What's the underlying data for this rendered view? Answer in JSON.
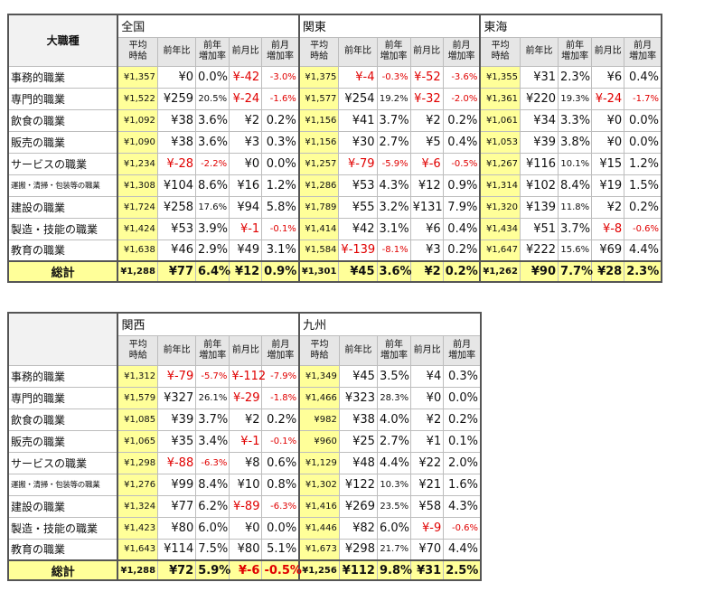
{
  "category_header": "大職種",
  "col_labels": {
    "avg": "平均\n時給",
    "yoy": "前年比",
    "yoy_rate": "前年\n増加率",
    "mom": "前月比",
    "mom_rate": "前月\n増加率"
  },
  "row_labels": [
    "事務的職業",
    "専門的職業",
    "飲食の職業",
    "販売の職業",
    "サービスの職業",
    "運搬・清掃・包装等の職業",
    "建設の職業",
    "製造・技能の職業",
    "教育の職業"
  ],
  "total_label": "総計",
  "table1": {
    "regions": [
      "全国",
      "関東",
      "東海"
    ],
    "rows": [
      [
        [
          "¥1,357",
          "¥0",
          "0.0%",
          "¥-42",
          "-3.0%"
        ],
        [
          "¥1,375",
          "¥-4",
          "-0.3%",
          "¥-52",
          "-3.6%"
        ],
        [
          "¥1,355",
          "¥31",
          "2.3%",
          "¥6",
          "0.4%"
        ]
      ],
      [
        [
          "¥1,522",
          "¥259",
          "20.5%",
          "¥-24",
          "-1.6%"
        ],
        [
          "¥1,577",
          "¥254",
          "19.2%",
          "¥-32",
          "-2.0%"
        ],
        [
          "¥1,361",
          "¥220",
          "19.3%",
          "¥-24",
          "-1.7%"
        ]
      ],
      [
        [
          "¥1,092",
          "¥38",
          "3.6%",
          "¥2",
          "0.2%"
        ],
        [
          "¥1,156",
          "¥41",
          "3.7%",
          "¥2",
          "0.2%"
        ],
        [
          "¥1,061",
          "¥34",
          "3.3%",
          "¥0",
          "0.0%"
        ]
      ],
      [
        [
          "¥1,090",
          "¥38",
          "3.6%",
          "¥3",
          "0.3%"
        ],
        [
          "¥1,156",
          "¥30",
          "2.7%",
          "¥5",
          "0.4%"
        ],
        [
          "¥1,053",
          "¥39",
          "3.8%",
          "¥0",
          "0.0%"
        ]
      ],
      [
        [
          "¥1,234",
          "¥-28",
          "-2.2%",
          "¥0",
          "0.0%"
        ],
        [
          "¥1,257",
          "¥-79",
          "-5.9%",
          "¥-6",
          "-0.5%"
        ],
        [
          "¥1,267",
          "¥116",
          "10.1%",
          "¥15",
          "1.2%"
        ]
      ],
      [
        [
          "¥1,308",
          "¥104",
          "8.6%",
          "¥16",
          "1.2%"
        ],
        [
          "¥1,286",
          "¥53",
          "4.3%",
          "¥12",
          "0.9%"
        ],
        [
          "¥1,314",
          "¥102",
          "8.4%",
          "¥19",
          "1.5%"
        ]
      ],
      [
        [
          "¥1,724",
          "¥258",
          "17.6%",
          "¥94",
          "5.8%"
        ],
        [
          "¥1,789",
          "¥55",
          "3.2%",
          "¥131",
          "7.9%"
        ],
        [
          "¥1,320",
          "¥139",
          "11.8%",
          "¥2",
          "0.2%"
        ]
      ],
      [
        [
          "¥1,424",
          "¥53",
          "3.9%",
          "¥-1",
          "-0.1%"
        ],
        [
          "¥1,414",
          "¥42",
          "3.1%",
          "¥6",
          "0.4%"
        ],
        [
          "¥1,434",
          "¥51",
          "3.7%",
          "¥-8",
          "-0.6%"
        ]
      ],
      [
        [
          "¥1,638",
          "¥46",
          "2.9%",
          "¥49",
          "3.1%"
        ],
        [
          "¥1,584",
          "¥-139",
          "-8.1%",
          "¥3",
          "0.2%"
        ],
        [
          "¥1,647",
          "¥222",
          "15.6%",
          "¥69",
          "4.4%"
        ]
      ]
    ],
    "total": [
      [
        "¥1,288",
        "¥77",
        "6.4%",
        "¥12",
        "0.9%"
      ],
      [
        "¥1,301",
        "¥45",
        "3.6%",
        "¥2",
        "0.2%"
      ],
      [
        "¥1,262",
        "¥90",
        "7.7%",
        "¥28",
        "2.3%"
      ]
    ]
  },
  "table2": {
    "regions": [
      "関西",
      "九州"
    ],
    "rows": [
      [
        [
          "¥1,312",
          "¥-79",
          "-5.7%",
          "¥-112",
          "-7.9%"
        ],
        [
          "¥1,349",
          "¥45",
          "3.5%",
          "¥4",
          "0.3%"
        ]
      ],
      [
        [
          "¥1,579",
          "¥327",
          "26.1%",
          "¥-29",
          "-1.8%"
        ],
        [
          "¥1,466",
          "¥323",
          "28.3%",
          "¥0",
          "0.0%"
        ]
      ],
      [
        [
          "¥1,085",
          "¥39",
          "3.7%",
          "¥2",
          "0.2%"
        ],
        [
          "¥982",
          "¥38",
          "4.0%",
          "¥2",
          "0.2%"
        ]
      ],
      [
        [
          "¥1,065",
          "¥35",
          "3.4%",
          "¥-1",
          "-0.1%"
        ],
        [
          "¥960",
          "¥25",
          "2.7%",
          "¥1",
          "0.1%"
        ]
      ],
      [
        [
          "¥1,298",
          "¥-88",
          "-6.3%",
          "¥8",
          "0.6%"
        ],
        [
          "¥1,129",
          "¥48",
          "4.4%",
          "¥22",
          "2.0%"
        ]
      ],
      [
        [
          "¥1,276",
          "¥99",
          "8.4%",
          "¥10",
          "0.8%"
        ],
        [
          "¥1,302",
          "¥122",
          "10.3%",
          "¥21",
          "1.6%"
        ]
      ],
      [
        [
          "¥1,324",
          "¥77",
          "6.2%",
          "¥-89",
          "-6.3%"
        ],
        [
          "¥1,416",
          "¥269",
          "23.5%",
          "¥58",
          "4.3%"
        ]
      ],
      [
        [
          "¥1,423",
          "¥80",
          "6.0%",
          "¥0",
          "0.0%"
        ],
        [
          "¥1,446",
          "¥82",
          "6.0%",
          "¥-9",
          "-0.6%"
        ]
      ],
      [
        [
          "¥1,643",
          "¥114",
          "7.5%",
          "¥80",
          "5.1%"
        ],
        [
          "¥1,673",
          "¥298",
          "21.7%",
          "¥70",
          "4.4%"
        ]
      ]
    ],
    "total": [
      [
        "¥1,288",
        "¥72",
        "5.9%",
        "¥-6",
        "-0.5%"
      ],
      [
        "¥1,256",
        "¥112",
        "9.8%",
        "¥31",
        "2.5%"
      ]
    ]
  },
  "colors": {
    "highlight": "#ffff99",
    "negative": "#e00000",
    "header_bg": "#e6e6e6"
  }
}
